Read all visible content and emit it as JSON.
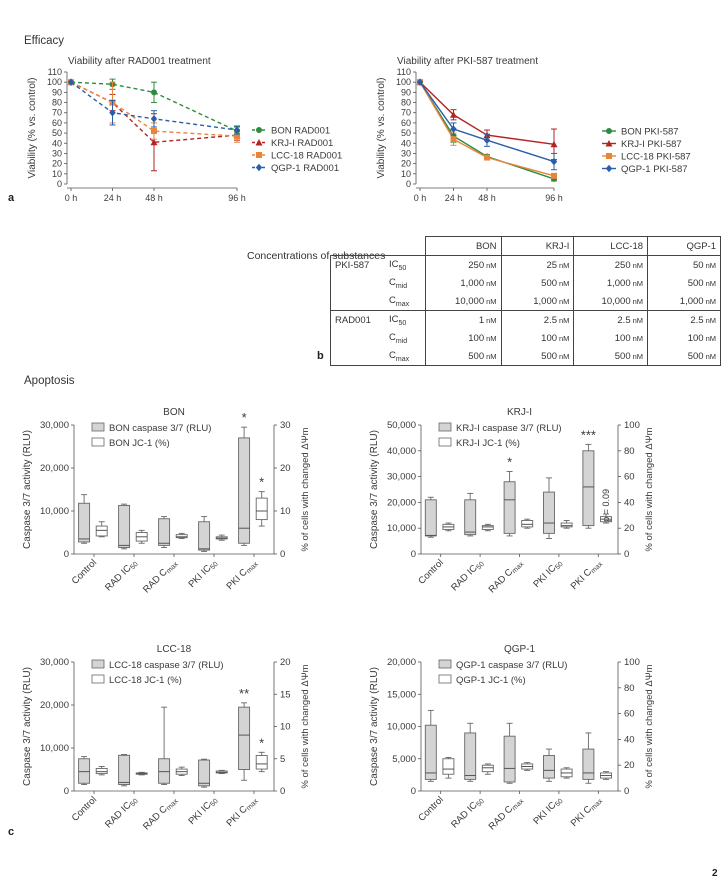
{
  "section_efficacy": "Efficacy",
  "section_apoptosis": "Apoptosis",
  "page_number": "2",
  "panel_labels": {
    "a": "a",
    "b": "b",
    "c": "c"
  },
  "chart_data": [
    {
      "type": "line",
      "title": "Viability after RAD001 treatment",
      "xlabel": "",
      "ylabel": "Viability (% vs. control)",
      "categories": [
        "0 h",
        "24 h",
        "48 h",
        "96 h"
      ],
      "x": [
        0,
        24,
        48,
        96
      ],
      "ylim": [
        0,
        110
      ],
      "yticks": [
        0,
        10,
        20,
        30,
        40,
        50,
        60,
        70,
        80,
        90,
        100,
        110
      ],
      "line_style": "dashed",
      "series": [
        {
          "name": "BON RAD001",
          "color": "#2e8b3e",
          "marker": "circle",
          "values": [
            100,
            98,
            90,
            52
          ],
          "errors": [
            0,
            5,
            10,
            4
          ]
        },
        {
          "name": "KRJ-I RAD001",
          "color": "#b22424",
          "marker": "triangle",
          "values": [
            100,
            80,
            41,
            48
          ],
          "errors": [
            0,
            8,
            28,
            5
          ]
        },
        {
          "name": "LCC-18 RAD001",
          "color": "#e8853a",
          "marker": "square",
          "values": [
            100,
            80,
            52,
            47
          ],
          "errors": [
            0,
            20,
            8,
            6
          ]
        },
        {
          "name": "QGP-1 RAD001",
          "color": "#2a5fa8",
          "marker": "diamond",
          "values": [
            100,
            70,
            64,
            53
          ],
          "errors": [
            0,
            12,
            8,
            4
          ]
        }
      ]
    },
    {
      "type": "line",
      "title": "Viability after PKI-587 treatment",
      "xlabel": "",
      "ylabel": "Viability (% vs. control)",
      "categories": [
        "0 h",
        "24 h",
        "48 h",
        "96 h"
      ],
      "x": [
        0,
        24,
        48,
        96
      ],
      "ylim": [
        0,
        110
      ],
      "yticks": [
        0,
        10,
        20,
        30,
        40,
        50,
        60,
        70,
        80,
        90,
        100,
        110
      ],
      "line_style": "solid",
      "series": [
        {
          "name": "BON PKI-587",
          "color": "#2e8b3e",
          "marker": "circle",
          "values": [
            100,
            47,
            27,
            5
          ],
          "errors": [
            0,
            6,
            2,
            2
          ]
        },
        {
          "name": "KRJ-I PKI-587",
          "color": "#b22424",
          "marker": "triangle",
          "values": [
            100,
            68,
            48,
            39
          ],
          "errors": [
            0,
            5,
            5,
            15
          ]
        },
        {
          "name": "LCC-18 PKI-587",
          "color": "#e8853a",
          "marker": "square",
          "values": [
            100,
            44,
            26,
            8
          ],
          "errors": [
            0,
            6,
            2,
            2
          ]
        },
        {
          "name": "QGP-1 PKI-587",
          "color": "#2a5fa8",
          "marker": "diamond",
          "values": [
            100,
            54,
            43,
            22
          ],
          "errors": [
            0,
            6,
            6,
            8
          ]
        }
      ]
    },
    {
      "type": "table",
      "title": "Concentrations of substances",
      "columns": [
        "BON",
        "KRJ-I",
        "LCC-18",
        "QGP-1"
      ],
      "groups": [
        {
          "substance": "PKI-587",
          "rows": [
            {
              "label": "IC",
              "sub": "50",
              "values": [
                "250",
                "25",
                "250",
                "50"
              ]
            },
            {
              "label": "C",
              "sub": "mid",
              "values": [
                "1,000",
                "500",
                "1,000",
                "500"
              ]
            },
            {
              "label": "C",
              "sub": "max",
              "values": [
                "10,000",
                "1,000",
                "10,000",
                "1,000"
              ]
            }
          ]
        },
        {
          "substance": "RAD001",
          "rows": [
            {
              "label": "IC",
              "sub": "50",
              "values": [
                "1",
                "2.5",
                "2.5",
                "2.5"
              ]
            },
            {
              "label": "C",
              "sub": "mid",
              "values": [
                "100",
                "100",
                "100",
                "100"
              ]
            },
            {
              "label": "C",
              "sub": "max",
              "values": [
                "500",
                "500",
                "500",
                "500"
              ]
            }
          ]
        }
      ],
      "unit": "nM"
    },
    {
      "type": "box",
      "title": "BON",
      "ylabel": "Caspase 3/7 activity (RLU)",
      "y2label": "% of cells with changed ΔΨm",
      "ylim": [
        0,
        30000
      ],
      "yticks": [
        "0",
        "10,000",
        "20,000",
        "30,000"
      ],
      "y2lim": [
        0,
        30
      ],
      "y2ticks": [
        "0",
        "10",
        "20",
        "30"
      ],
      "categories": [
        "Control",
        "RAD IC50",
        "RAD Cmax",
        "PKI IC50",
        "PKI Cmax"
      ],
      "legend": [
        "BON caspase 3/7 (RLU)",
        "BON JC-1 (%)"
      ],
      "caspase": [
        {
          "min": 2500,
          "q1": 2800,
          "median": 3500,
          "q3": 11800,
          "max": 13800
        },
        {
          "min": 1200,
          "q1": 1500,
          "median": 2000,
          "q3": 11300,
          "max": 11600
        },
        {
          "min": 1500,
          "q1": 2000,
          "median": 2500,
          "q3": 8200,
          "max": 8700
        },
        {
          "min": 600,
          "q1": 900,
          "median": 1200,
          "q3": 7500,
          "max": 8700
        },
        {
          "min": 2000,
          "q1": 2500,
          "median": 6000,
          "q3": 27000,
          "max": 29500
        }
      ],
      "jc1": [
        {
          "min": 4,
          "q1": 4.2,
          "median": 5.5,
          "q3": 6.5,
          "max": 7.5
        },
        {
          "min": 2.5,
          "q1": 3,
          "median": 4,
          "q3": 5,
          "max": 5.5
        },
        {
          "min": 3.6,
          "q1": 3.8,
          "median": 4,
          "q3": 4.5,
          "max": 4.8
        },
        {
          "min": 3.2,
          "q1": 3.5,
          "median": 3.7,
          "q3": 4,
          "max": 4.4
        },
        {
          "min": 6.5,
          "q1": 8,
          "median": 10,
          "q3": 13,
          "max": 14.5
        }
      ],
      "annotations": [
        {
          "category": 4,
          "series": "caspase",
          "text": "*"
        },
        {
          "category": 4,
          "series": "jc1",
          "text": "*"
        }
      ]
    },
    {
      "type": "box",
      "title": "KRJ-I",
      "ylabel": "Caspase 3/7 activity (RLU)",
      "y2label": "% of cells with changed ΔΨm",
      "ylim": [
        0,
        50000
      ],
      "yticks": [
        "0",
        "10,000",
        "20,000",
        "30,000",
        "40,000",
        "50,000"
      ],
      "y2lim": [
        0,
        100
      ],
      "y2ticks": [
        "0",
        "20",
        "40",
        "60",
        "80",
        "100"
      ],
      "categories": [
        "Control",
        "RAD IC50",
        "RAD Cmax",
        "PKI IC50",
        "PKI Cmax"
      ],
      "legend": [
        "KRJ-I caspase 3/7 (RLU)",
        "KRJ-I JC-1 (%)"
      ],
      "caspase": [
        {
          "min": 6500,
          "q1": 7000,
          "median": 7200,
          "q3": 21000,
          "max": 22000
        },
        {
          "min": 7000,
          "q1": 7500,
          "median": 8500,
          "q3": 21000,
          "max": 23500
        },
        {
          "min": 7000,
          "q1": 8000,
          "median": 21000,
          "q3": 28000,
          "max": 32000
        },
        {
          "min": 6000,
          "q1": 8000,
          "median": 12000,
          "q3": 24000,
          "max": 29500
        },
        {
          "min": 10000,
          "q1": 11000,
          "median": 26000,
          "q3": 40000,
          "max": 42500
        }
      ],
      "jc1": [
        {
          "min": 18,
          "q1": 19,
          "median": 21,
          "q3": 23,
          "max": 24
        },
        {
          "min": 18,
          "q1": 19,
          "median": 21,
          "q3": 22,
          "max": 23
        },
        {
          "min": 20,
          "q1": 21,
          "median": 23,
          "q3": 26,
          "max": 27
        },
        {
          "min": 20,
          "q1": 21,
          "median": 22,
          "q3": 24,
          "max": 26
        },
        {
          "min": 24,
          "q1": 25,
          "median": 27,
          "q3": 29,
          "max": 31
        }
      ],
      "annotations": [
        {
          "category": 2,
          "series": "caspase",
          "text": "*"
        },
        {
          "category": 4,
          "series": "caspase",
          "text": "***"
        },
        {
          "category": 4,
          "series": "jc1",
          "text": "p = 0.09"
        }
      ]
    },
    {
      "type": "box",
      "title": "LCC-18",
      "ylabel": "Caspase 3/7 activity (RLU)",
      "y2label": "% of cells with changed ΔΨm",
      "ylim": [
        0,
        30000
      ],
      "yticks": [
        "0",
        "10,000",
        "20,000",
        "30,000"
      ],
      "y2lim": [
        0,
        20
      ],
      "y2ticks": [
        "0",
        "5",
        "10",
        "15",
        "20"
      ],
      "categories": [
        "Control",
        "RAD IC50",
        "RAD Cmax",
        "PKI IC50",
        "PKI Cmax"
      ],
      "legend": [
        "LCC-18 caspase 3/7 (RLU)",
        "LCC-18 JC-1 (%)"
      ],
      "caspase": [
        {
          "min": 1500,
          "q1": 1800,
          "median": 4500,
          "q3": 7500,
          "max": 8000
        },
        {
          "min": 1200,
          "q1": 1500,
          "median": 2000,
          "q3": 8300,
          "max": 8500
        },
        {
          "min": 1500,
          "q1": 1800,
          "median": 4500,
          "q3": 7500,
          "max": 19500
        },
        {
          "min": 900,
          "q1": 1200,
          "median": 1800,
          "q3": 7200,
          "max": 7400
        },
        {
          "min": 2500,
          "q1": 5000,
          "median": 13000,
          "q3": 19500,
          "max": 20500
        }
      ],
      "jc1": [
        {
          "min": 2.5,
          "q1": 2.7,
          "median": 3,
          "q3": 3.5,
          "max": 3.8
        },
        {
          "min": 2.5,
          "q1": 2.6,
          "median": 2.7,
          "q3": 2.8,
          "max": 2.9
        },
        {
          "min": 2.4,
          "q1": 2.6,
          "median": 3,
          "q3": 3.4,
          "max": 3.7
        },
        {
          "min": 2.7,
          "q1": 2.8,
          "median": 2.9,
          "q3": 3.1,
          "max": 3.2
        },
        {
          "min": 3,
          "q1": 3.4,
          "median": 4.2,
          "q3": 5.5,
          "max": 6
        }
      ],
      "annotations": [
        {
          "category": 4,
          "series": "caspase",
          "text": "**"
        },
        {
          "category": 4,
          "series": "jc1",
          "text": "*"
        }
      ]
    },
    {
      "type": "box",
      "title": "QGP-1",
      "ylabel": "Caspase 3/7 activity (RLU)",
      "y2label": "% of cells with changed ΔΨm",
      "ylim": [
        0,
        20000
      ],
      "yticks": [
        "0",
        "5,000",
        "10,000",
        "15,000",
        "20,000"
      ],
      "y2lim": [
        0,
        100
      ],
      "y2ticks": [
        "0",
        "20",
        "40",
        "60",
        "80",
        "100"
      ],
      "categories": [
        "Control",
        "RAD IC50",
        "RAD Cmax",
        "PKI IC50",
        "PKI Cmax"
      ],
      "legend": [
        "QGP-1 caspase 3/7 (RLU)",
        "QGP-1 JC-1 (%)"
      ],
      "caspase": [
        {
          "min": 1500,
          "q1": 1800,
          "median": 2800,
          "q3": 10200,
          "max": 12500
        },
        {
          "min": 1500,
          "q1": 1800,
          "median": 2400,
          "q3": 9000,
          "max": 10500
        },
        {
          "min": 1200,
          "q1": 1400,
          "median": 3500,
          "q3": 8500,
          "max": 10500
        },
        {
          "min": 1500,
          "q1": 2000,
          "median": 3200,
          "q3": 5500,
          "max": 6500
        },
        {
          "min": 1200,
          "q1": 1800,
          "median": 2800,
          "q3": 6500,
          "max": 9000
        }
      ],
      "jc1": [
        {
          "min": 10,
          "q1": 13,
          "median": 17,
          "q3": 25,
          "max": 26
        },
        {
          "min": 13,
          "q1": 15,
          "median": 18,
          "q3": 20,
          "max": 21
        },
        {
          "min": 16,
          "q1": 17,
          "median": 19,
          "q3": 21,
          "max": 22
        },
        {
          "min": 10,
          "q1": 11,
          "median": 14,
          "q3": 17,
          "max": 18
        },
        {
          "min": 9,
          "q1": 10,
          "median": 12,
          "q3": 14,
          "max": 15
        }
      ],
      "annotations": []
    }
  ]
}
